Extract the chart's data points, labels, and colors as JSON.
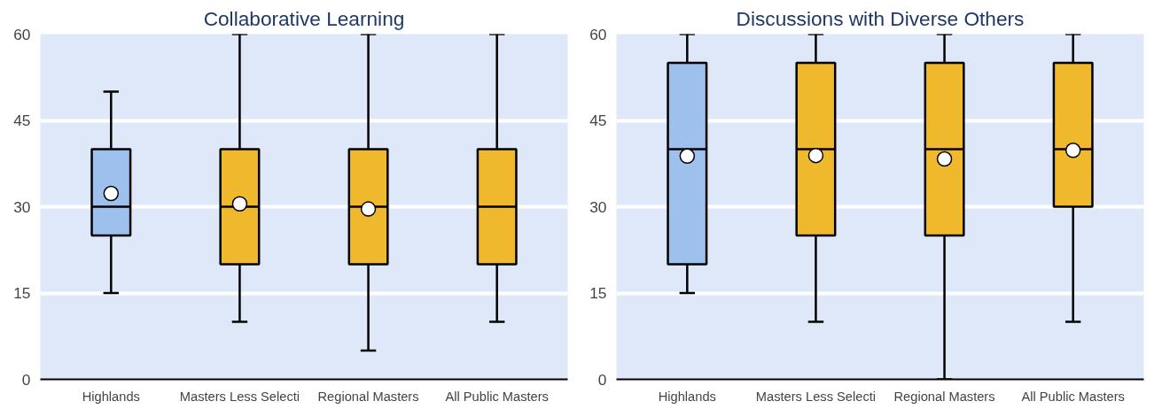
{
  "chart_data": [
    {
      "type": "box",
      "title": "Collaborative Learning",
      "categories": [
        "Highlands",
        "Masters Less Selecti",
        "Regional Masters",
        "All Public Masters"
      ],
      "colors": [
        "#9dc0ec",
        "#f0b82d",
        "#f0b82d",
        "#f0b82d"
      ],
      "ylim": [
        0,
        60
      ],
      "yticks": [
        0,
        15,
        30,
        45,
        60
      ],
      "grid": "y",
      "boxes": [
        {
          "low": 15,
          "q1": 25,
          "median": 30,
          "q3": 40,
          "high": 50,
          "mean": 32.3
        },
        {
          "low": 10,
          "q1": 20,
          "median": 30,
          "q3": 40,
          "high": 60,
          "mean": 30.5
        },
        {
          "low": 5,
          "q1": 20,
          "median": 30,
          "q3": 40,
          "high": 60,
          "mean": 29.6
        },
        {
          "low": 10,
          "q1": 20,
          "median": 30,
          "q3": 40,
          "high": 60
        }
      ]
    },
    {
      "type": "box",
      "title": "Discussions with Diverse Others",
      "categories": [
        "Highlands",
        "Masters Less Selecti",
        "Regional Masters",
        "All Public Masters"
      ],
      "colors": [
        "#9dc0ec",
        "#f0b82d",
        "#f0b82d",
        "#f0b82d"
      ],
      "ylim": [
        0,
        60
      ],
      "yticks": [
        0,
        15,
        30,
        45,
        60
      ],
      "grid": "y",
      "boxes": [
        {
          "low": 15,
          "q1": 20,
          "median": 40,
          "q3": 55,
          "high": 60,
          "mean": 38.8
        },
        {
          "low": 10,
          "q1": 25,
          "median": 40,
          "q3": 55,
          "high": 60,
          "mean": 38.9
        },
        {
          "low": 0,
          "q1": 25,
          "median": 40,
          "q3": 55,
          "high": 60,
          "mean": 38.3
        },
        {
          "low": 10,
          "q1": 30,
          "median": 40,
          "q3": 55,
          "high": 60,
          "mean": 39.8
        }
      ]
    }
  ]
}
